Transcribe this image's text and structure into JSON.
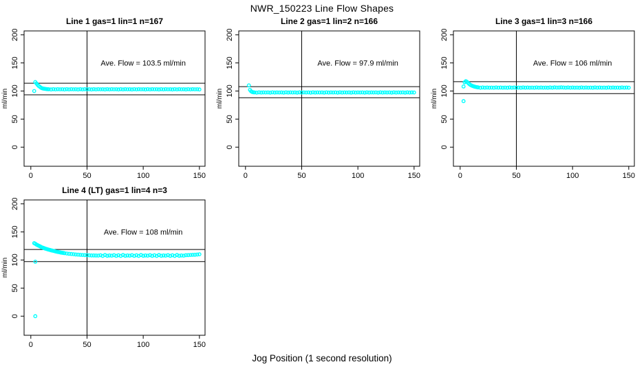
{
  "title": "NWR_150223  Line Flow Shapes",
  "xlabel": "Jog Position (1 second resolution)",
  "colors": {
    "points": "#00FFFF",
    "axis": "#000000",
    "background": "#FFFFFF",
    "text": "#000000"
  },
  "chart_data": [
    {
      "type": "scatter",
      "title": "Line 1 gas=1 lin=1 n=167",
      "annotation": "Ave. Flow =  103.5  ml/min",
      "ave_flow_ml_min": 103.5,
      "ylabel": "ml/min",
      "x_ticks": [
        0,
        50,
        100,
        150
      ],
      "y_ticks": [
        0,
        50,
        100,
        150,
        200
      ],
      "xlim": [
        -6,
        155
      ],
      "ylim": [
        -34,
        207
      ],
      "hlines": [
        113.9,
        93.2
      ],
      "vline": 50,
      "legend_position": "none",
      "grid": false,
      "points": [
        [
          3,
          100
        ],
        [
          4,
          116
        ],
        [
          5,
          113.5
        ],
        [
          6,
          111
        ],
        [
          7,
          109
        ],
        [
          8,
          107.5
        ],
        [
          9,
          106
        ],
        [
          10,
          105
        ],
        [
          11,
          104.4
        ],
        [
          12,
          104
        ],
        [
          13,
          103.7
        ],
        [
          14,
          103.4
        ],
        [
          15,
          103.2
        ],
        [
          16,
          103.1
        ],
        [
          18,
          102.8
        ],
        [
          20,
          103.3
        ],
        [
          22,
          102.9
        ],
        [
          24,
          103.2
        ],
        [
          26,
          103
        ],
        [
          28,
          103.1
        ],
        [
          30,
          102.8
        ],
        [
          32,
          103.3
        ],
        [
          34,
          102.9
        ],
        [
          36,
          103.2
        ],
        [
          38,
          103
        ],
        [
          40,
          103.1
        ],
        [
          42,
          102.8
        ],
        [
          44,
          103.3
        ],
        [
          46,
          102.9
        ],
        [
          48,
          103.2
        ],
        [
          50,
          103
        ],
        [
          52,
          103.1
        ],
        [
          54,
          102.8
        ],
        [
          56,
          103.3
        ],
        [
          58,
          102.9
        ],
        [
          60,
          103.2
        ],
        [
          62,
          103
        ],
        [
          64,
          103.1
        ],
        [
          66,
          102.8
        ],
        [
          68,
          103.3
        ],
        [
          70,
          102.9
        ],
        [
          72,
          103.2
        ],
        [
          74,
          103
        ],
        [
          76,
          103.1
        ],
        [
          78,
          102.8
        ],
        [
          80,
          103.3
        ],
        [
          82,
          102.9
        ],
        [
          84,
          103.2
        ],
        [
          86,
          103
        ],
        [
          88,
          103.1
        ],
        [
          90,
          102.8
        ],
        [
          92,
          103.3
        ],
        [
          94,
          102.9
        ],
        [
          96,
          103.2
        ],
        [
          98,
          103
        ],
        [
          100,
          103.1
        ],
        [
          102,
          102.8
        ],
        [
          104,
          103.3
        ],
        [
          106,
          102.9
        ],
        [
          108,
          103.2
        ],
        [
          110,
          103
        ],
        [
          112,
          103.1
        ],
        [
          114,
          102.8
        ],
        [
          116,
          103.3
        ],
        [
          118,
          102.9
        ],
        [
          120,
          103.2
        ],
        [
          122,
          103
        ],
        [
          124,
          103.1
        ],
        [
          126,
          102.8
        ],
        [
          128,
          103.3
        ],
        [
          130,
          102.9
        ],
        [
          132,
          103.2
        ],
        [
          134,
          103
        ],
        [
          136,
          103.1
        ],
        [
          138,
          102.8
        ],
        [
          140,
          103.3
        ],
        [
          142,
          102.9
        ],
        [
          144,
          103.2
        ],
        [
          146,
          103
        ],
        [
          148,
          103.1
        ],
        [
          150,
          102.8
        ]
      ]
    },
    {
      "type": "scatter",
      "title": "Line 2 gas=1 lin=2 n=166",
      "annotation": "Ave. Flow =  97.9  ml/min",
      "ave_flow_ml_min": 97.9,
      "ylabel": "ml/min",
      "x_ticks": [
        0,
        50,
        100,
        150
      ],
      "y_ticks": [
        0,
        50,
        100,
        150,
        200
      ],
      "xlim": [
        -6,
        155
      ],
      "ylim": [
        -34,
        207
      ],
      "hlines": [
        107.7,
        88.1
      ],
      "vline": 50,
      "legend_position": "none",
      "grid": false,
      "points": [
        [
          3,
          110
        ],
        [
          4,
          102
        ],
        [
          5,
          99.5
        ],
        [
          6,
          98.3
        ],
        [
          7,
          97.8
        ],
        [
          8,
          97.5
        ],
        [
          10,
          97.2
        ],
        [
          12,
          97.6
        ],
        [
          14,
          97.3
        ],
        [
          16,
          97.5
        ],
        [
          18,
          97.4
        ],
        [
          20,
          97.5
        ],
        [
          22,
          97.2
        ],
        [
          24,
          97.6
        ],
        [
          26,
          97.3
        ],
        [
          28,
          97.5
        ],
        [
          30,
          97.4
        ],
        [
          32,
          97.5
        ],
        [
          34,
          97.2
        ],
        [
          36,
          97.6
        ],
        [
          38,
          97.3
        ],
        [
          40,
          97.5
        ],
        [
          42,
          97.4
        ],
        [
          44,
          97.5
        ],
        [
          46,
          97.2
        ],
        [
          48,
          97.6
        ],
        [
          50,
          97.3
        ],
        [
          52,
          97.5
        ],
        [
          54,
          97.4
        ],
        [
          56,
          97.5
        ],
        [
          58,
          97.2
        ],
        [
          60,
          97.6
        ],
        [
          62,
          97.3
        ],
        [
          64,
          97.5
        ],
        [
          66,
          97.4
        ],
        [
          68,
          97.5
        ],
        [
          70,
          97.2
        ],
        [
          72,
          97.6
        ],
        [
          74,
          97.3
        ],
        [
          76,
          97.5
        ],
        [
          78,
          97.4
        ],
        [
          80,
          97.5
        ],
        [
          82,
          97.2
        ],
        [
          84,
          97.6
        ],
        [
          86,
          97.3
        ],
        [
          88,
          97.5
        ],
        [
          90,
          97.4
        ],
        [
          92,
          97.5
        ],
        [
          94,
          97.2
        ],
        [
          96,
          97.6
        ],
        [
          98,
          97.3
        ],
        [
          100,
          97.5
        ],
        [
          102,
          97.4
        ],
        [
          104,
          97.5
        ],
        [
          106,
          97.2
        ],
        [
          108,
          97.6
        ],
        [
          110,
          97.3
        ],
        [
          112,
          97.5
        ],
        [
          114,
          97.4
        ],
        [
          116,
          97.5
        ],
        [
          118,
          97.2
        ],
        [
          120,
          97.6
        ],
        [
          122,
          97.3
        ],
        [
          124,
          97.5
        ],
        [
          126,
          97.4
        ],
        [
          128,
          97.5
        ],
        [
          130,
          97.2
        ],
        [
          132,
          97.6
        ],
        [
          134,
          97.3
        ],
        [
          136,
          97.5
        ],
        [
          138,
          97.4
        ],
        [
          140,
          97.5
        ],
        [
          142,
          97.2
        ],
        [
          144,
          97.6
        ],
        [
          146,
          97.3
        ],
        [
          148,
          97.5
        ],
        [
          150,
          97.4
        ]
      ]
    },
    {
      "type": "scatter",
      "title": "Line 3 gas=1 lin=3 n=166",
      "annotation": "Ave. Flow =  106  ml/min",
      "ave_flow_ml_min": 106,
      "ylabel": "ml/min",
      "x_ticks": [
        0,
        50,
        100,
        150
      ],
      "y_ticks": [
        0,
        50,
        100,
        150,
        200
      ],
      "xlim": [
        -6,
        155
      ],
      "ylim": [
        -34,
        207
      ],
      "hlines": [
        116.6,
        95.4
      ],
      "vline": 50,
      "legend_position": "none",
      "grid": false,
      "points": [
        [
          3,
          82
        ],
        [
          3,
          108
        ],
        [
          4,
          115.5
        ],
        [
          5,
          117.5
        ],
        [
          6,
          116.5
        ],
        [
          7,
          114.5
        ],
        [
          8,
          112.5
        ],
        [
          9,
          111
        ],
        [
          10,
          110
        ],
        [
          11,
          109
        ],
        [
          12,
          108.3
        ],
        [
          13,
          107.7
        ],
        [
          14,
          107.2
        ],
        [
          15,
          106.8
        ],
        [
          16,
          106.4
        ],
        [
          18,
          105.8
        ],
        [
          20,
          106.3
        ],
        [
          22,
          105.9
        ],
        [
          24,
          106.2
        ],
        [
          26,
          106
        ],
        [
          28,
          106.1
        ],
        [
          30,
          105.8
        ],
        [
          32,
          106.3
        ],
        [
          34,
          105.9
        ],
        [
          36,
          106.2
        ],
        [
          38,
          106
        ],
        [
          40,
          106.1
        ],
        [
          42,
          105.8
        ],
        [
          44,
          106.3
        ],
        [
          46,
          105.9
        ],
        [
          48,
          106.2
        ],
        [
          50,
          106
        ],
        [
          52,
          106.1
        ],
        [
          54,
          105.8
        ],
        [
          56,
          106.3
        ],
        [
          58,
          105.9
        ],
        [
          60,
          106.2
        ],
        [
          62,
          106
        ],
        [
          64,
          106.1
        ],
        [
          66,
          105.8
        ],
        [
          68,
          106.3
        ],
        [
          70,
          105.9
        ],
        [
          72,
          106.2
        ],
        [
          74,
          106
        ],
        [
          76,
          106.1
        ],
        [
          78,
          105.8
        ],
        [
          80,
          106.3
        ],
        [
          82,
          105.9
        ],
        [
          84,
          106.4
        ],
        [
          86,
          106.1
        ],
        [
          88,
          106.2
        ],
        [
          90,
          106.5
        ],
        [
          92,
          106.2
        ],
        [
          94,
          106
        ],
        [
          96,
          106.3
        ],
        [
          98,
          105.9
        ],
        [
          100,
          106.2
        ],
        [
          102,
          106
        ],
        [
          104,
          106.1
        ],
        [
          106,
          105.8
        ],
        [
          108,
          106.3
        ],
        [
          110,
          105.9
        ],
        [
          112,
          106.2
        ],
        [
          114,
          106
        ],
        [
          116,
          106.1
        ],
        [
          118,
          105.8
        ],
        [
          120,
          106.3
        ],
        [
          122,
          105.9
        ],
        [
          124,
          106.2
        ],
        [
          126,
          106
        ],
        [
          128,
          106.1
        ],
        [
          130,
          105.8
        ],
        [
          132,
          106.3
        ],
        [
          134,
          105.9
        ],
        [
          136,
          106.2
        ],
        [
          138,
          106
        ],
        [
          140,
          106.1
        ],
        [
          142,
          105.8
        ],
        [
          144,
          106.3
        ],
        [
          146,
          105.9
        ],
        [
          148,
          106.2
        ],
        [
          150,
          106
        ]
      ]
    },
    {
      "type": "scatter",
      "title": "Line 4 (LT) gas=1 lin=4 n=3",
      "annotation": "Ave. Flow =  108  ml/min",
      "ave_flow_ml_min": 108,
      "ylabel": "ml/min",
      "x_ticks": [
        0,
        50,
        100,
        150
      ],
      "y_ticks": [
        0,
        50,
        100,
        150,
        200
      ],
      "xlim": [
        -6,
        155
      ],
      "ylim": [
        -34,
        207
      ],
      "hlines": [
        118.8,
        97.2
      ],
      "vline": 50,
      "legend_position": "none",
      "grid": false,
      "points": [
        [
          4,
          97
        ],
        [
          4,
          0
        ],
        [
          3,
          130
        ],
        [
          4,
          129
        ],
        [
          5,
          127.5
        ],
        [
          6,
          126.5
        ],
        [
          7,
          125.5
        ],
        [
          8,
          124.5
        ],
        [
          9,
          123.5
        ],
        [
          10,
          122.5
        ],
        [
          11,
          121.8
        ],
        [
          12,
          121
        ],
        [
          13,
          120.3
        ],
        [
          14,
          119.6
        ],
        [
          15,
          119
        ],
        [
          16,
          118.4
        ],
        [
          17,
          117.9
        ],
        [
          18,
          117.3
        ],
        [
          19,
          116.8
        ],
        [
          20,
          116.3
        ],
        [
          21,
          115.8
        ],
        [
          22,
          115.3
        ],
        [
          23,
          114.9
        ],
        [
          24,
          114.4
        ],
        [
          25,
          114
        ],
        [
          26,
          113.6
        ],
        [
          27,
          113.2
        ],
        [
          28,
          112.9
        ],
        [
          29,
          112.5
        ],
        [
          30,
          112.2
        ],
        [
          32,
          111.6
        ],
        [
          34,
          111.1
        ],
        [
          36,
          110.7
        ],
        [
          38,
          110.3
        ],
        [
          40,
          109.9
        ],
        [
          42,
          109.6
        ],
        [
          44,
          109.3
        ],
        [
          46,
          109
        ],
        [
          48,
          108.8
        ],
        [
          50,
          108.6
        ],
        [
          52,
          108.4
        ],
        [
          54,
          108.2
        ],
        [
          56,
          108.1
        ],
        [
          58,
          108
        ],
        [
          60,
          107.9
        ],
        [
          62,
          108.5
        ],
        [
          64,
          107.3
        ],
        [
          66,
          108.9
        ],
        [
          68,
          107.6
        ],
        [
          70,
          108.2
        ],
        [
          72,
          107.8
        ],
        [
          74,
          108.7
        ],
        [
          76,
          107.4
        ],
        [
          78,
          108.5
        ],
        [
          80,
          107.3
        ],
        [
          82,
          108.9
        ],
        [
          84,
          107.6
        ],
        [
          86,
          108.2
        ],
        [
          88,
          107.8
        ],
        [
          90,
          108.7
        ],
        [
          92,
          107.4
        ],
        [
          94,
          108.5
        ],
        [
          96,
          107.3
        ],
        [
          98,
          108.9
        ],
        [
          100,
          107.6
        ],
        [
          102,
          108.2
        ],
        [
          104,
          107.8
        ],
        [
          106,
          108.7
        ],
        [
          108,
          107.4
        ],
        [
          110,
          108.5
        ],
        [
          112,
          107.3
        ],
        [
          114,
          108.9
        ],
        [
          116,
          107.6
        ],
        [
          118,
          108.2
        ],
        [
          120,
          107.8
        ],
        [
          122,
          108.7
        ],
        [
          124,
          107.4
        ],
        [
          126,
          108.5
        ],
        [
          128,
          107.3
        ],
        [
          130,
          108.9
        ],
        [
          132,
          107.6
        ],
        [
          134,
          108.2
        ],
        [
          136,
          107.8
        ],
        [
          138,
          108.7
        ],
        [
          140,
          108.8
        ],
        [
          142,
          109
        ],
        [
          144,
          109.3
        ],
        [
          146,
          109.4
        ],
        [
          148,
          109.8
        ],
        [
          150,
          110.2
        ]
      ]
    }
  ]
}
